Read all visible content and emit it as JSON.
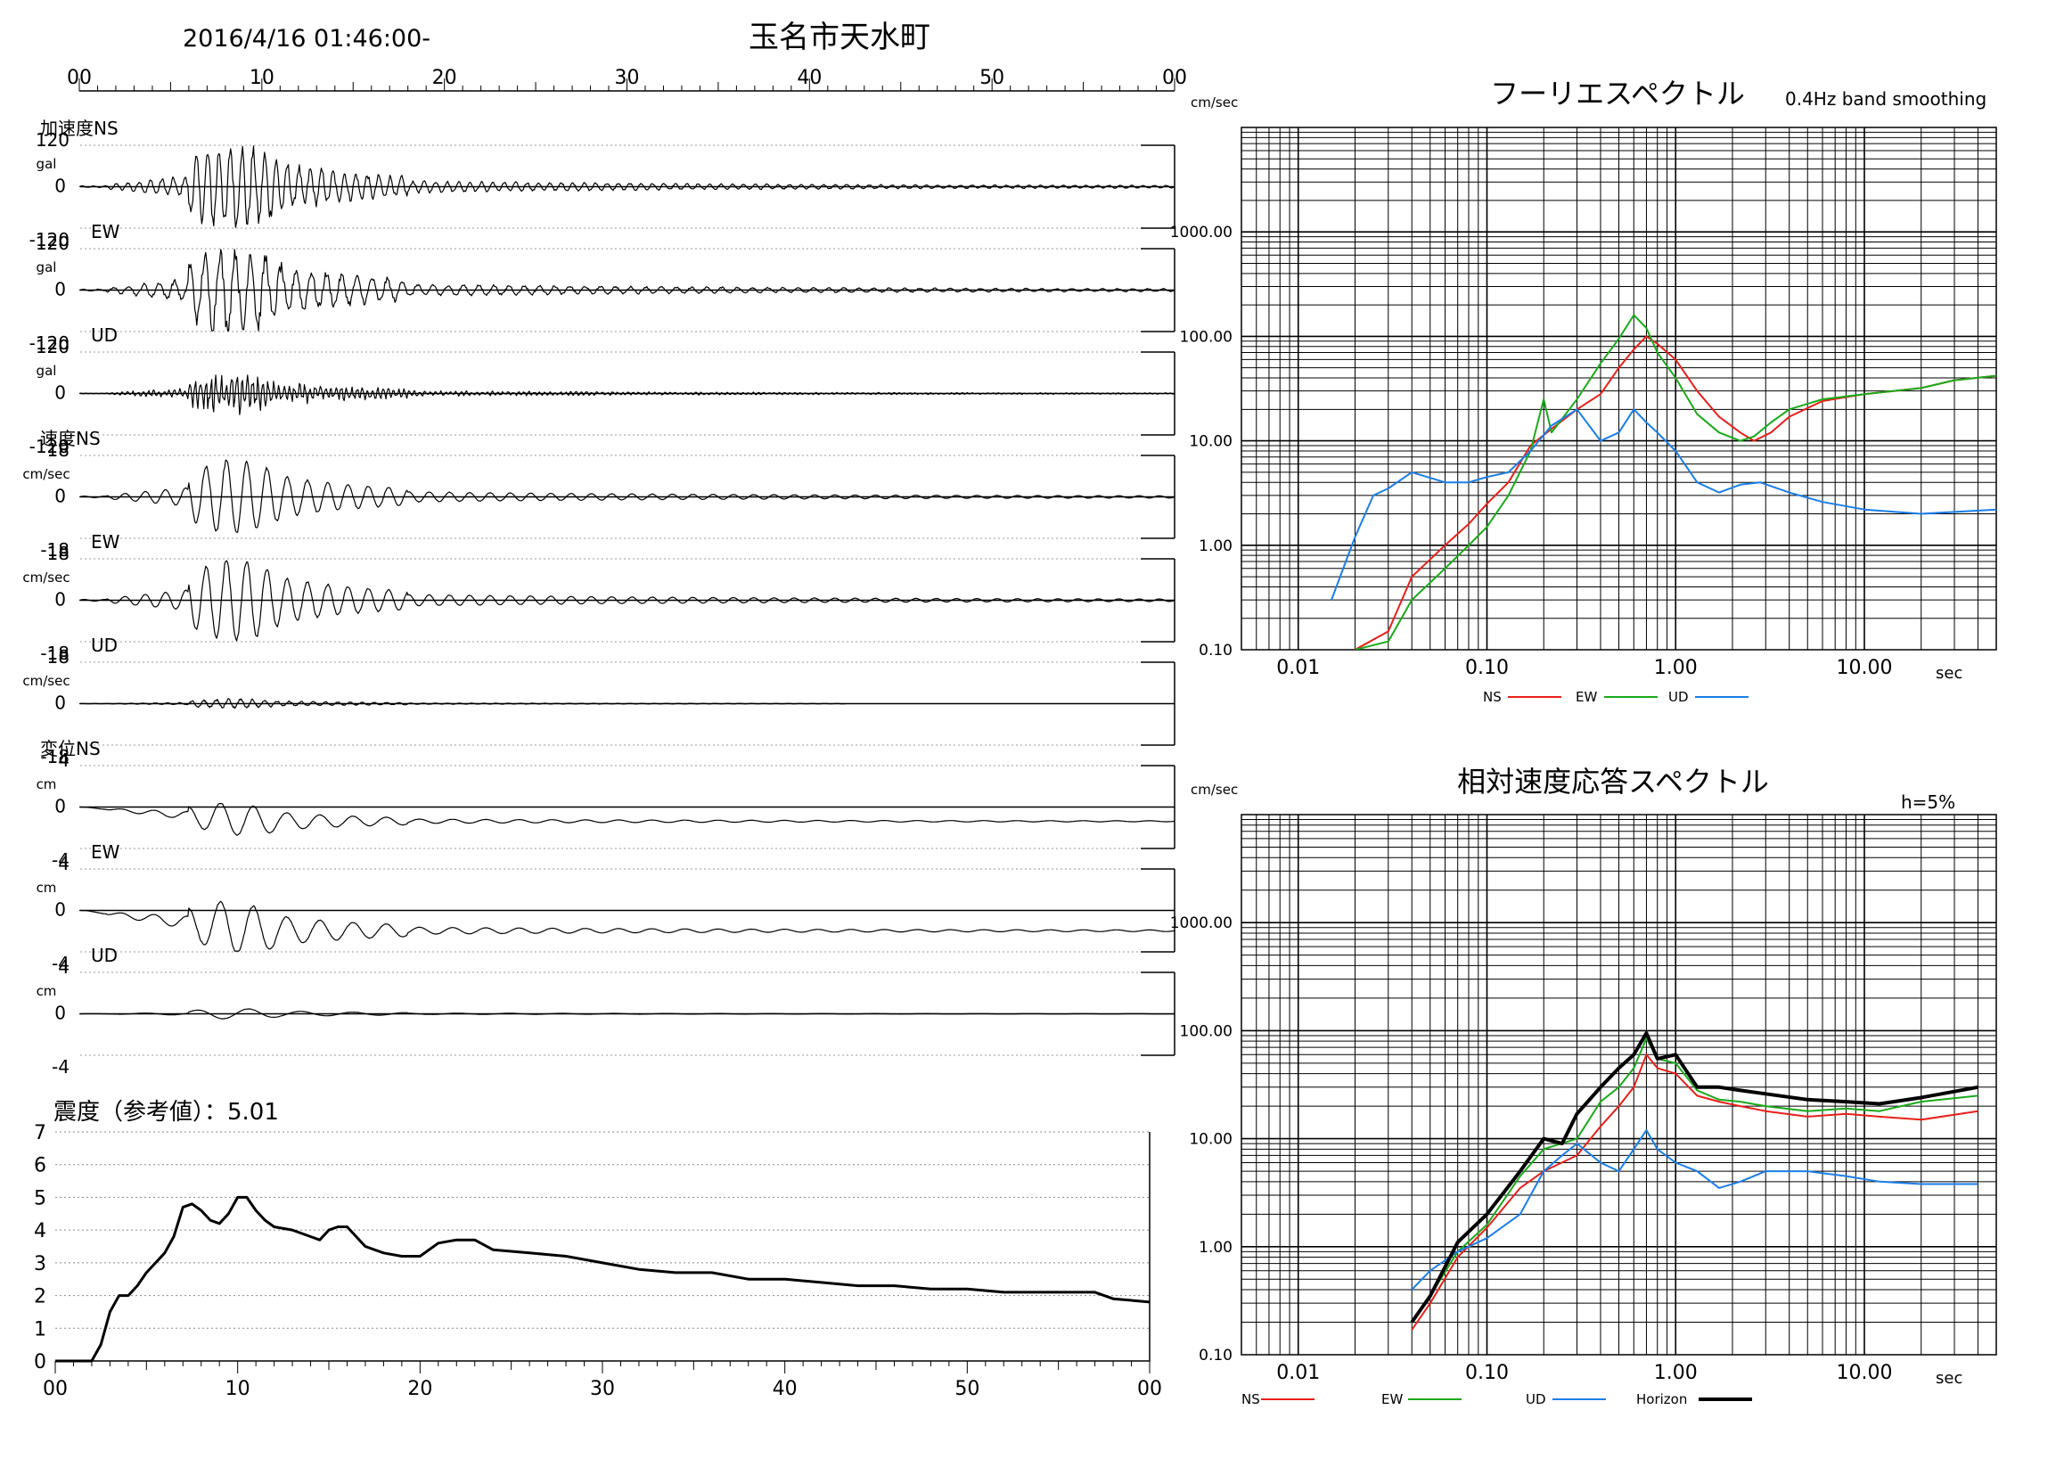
{
  "header": {
    "datetime": "2016/4/16 01:46:00-",
    "station": "玉名市天水町",
    "time_ticks": [
      "00",
      "10",
      "20",
      "30",
      "40",
      "50",
      "00"
    ]
  },
  "colors": {
    "ns": "#e8201a",
    "ew": "#1aaa1a",
    "ud": "#1a7ee8",
    "horizon": "#000000",
    "grid": "#000000"
  },
  "waveforms": {
    "groups": [
      {
        "label": "加速度",
        "unit": "gal",
        "max_label": "120",
        "zero_label": "0",
        "min_label": "-120",
        "components": [
          "NS",
          "EW",
          "UD"
        ]
      },
      {
        "label": "速度",
        "unit": "cm/sec",
        "max_label": "18",
        "zero_label": "0",
        "min_label": "-18",
        "components": [
          "NS",
          "EW",
          "UD"
        ]
      },
      {
        "label": "変位",
        "unit": "cm",
        "max_label": "4",
        "zero_label": "0",
        "min_label": "-4",
        "components": [
          "NS",
          "EW",
          "UD"
        ]
      }
    ]
  },
  "intensity": {
    "label": "震度（参考値）：5.01",
    "y_ticks": [
      "0",
      "1",
      "2",
      "3",
      "4",
      "5",
      "6",
      "7"
    ],
    "x_ticks": [
      "00",
      "10",
      "20",
      "30",
      "40",
      "50",
      "00"
    ]
  },
  "chart_data": [
    {
      "type": "line",
      "title": "震度（参考値）：5.01",
      "xlim": [
        0,
        60
      ],
      "ylim": [
        0,
        7
      ],
      "series": [
        {
          "name": "",
          "x": [
            0,
            2,
            2.5,
            3,
            3.5,
            4,
            4.5,
            5,
            5.5,
            6,
            6.5,
            7,
            7.5,
            8,
            8.5,
            9,
            9.5,
            10,
            10.5,
            11,
            11.5,
            12,
            13,
            14,
            14.5,
            15,
            15.5,
            16,
            17,
            18,
            19,
            20,
            21,
            22,
            23,
            24,
            26,
            28,
            30,
            32,
            34,
            36,
            38,
            40,
            42,
            44,
            46,
            48,
            50,
            52,
            55,
            57,
            58,
            60
          ],
          "y": [
            0,
            0,
            0.5,
            1.5,
            2.0,
            2.0,
            2.3,
            2.7,
            3.0,
            3.3,
            3.8,
            4.7,
            4.8,
            4.6,
            4.3,
            4.2,
            4.5,
            5.0,
            5.0,
            4.6,
            4.3,
            4.1,
            4.0,
            3.8,
            3.7,
            4.0,
            4.1,
            4.1,
            3.5,
            3.3,
            3.2,
            3.2,
            3.6,
            3.7,
            3.7,
            3.4,
            3.3,
            3.2,
            3.0,
            2.8,
            2.7,
            2.7,
            2.5,
            2.5,
            2.4,
            2.3,
            2.3,
            2.2,
            2.2,
            2.1,
            2.1,
            2.1,
            1.9,
            1.8
          ]
        }
      ]
    },
    {
      "type": "line",
      "title": "フーリエスペクトル",
      "subtitle": "0.4Hz band smoothing",
      "xlabel": "sec",
      "ylabel": "cm/sec",
      "x_scale": "log",
      "y_scale": "log",
      "xlim": [
        0.005,
        50
      ],
      "ylim": [
        0.1,
        10000
      ],
      "x_tick_labels": [
        "0.01",
        "0.10",
        "1.00",
        "10.00"
      ],
      "y_tick_labels": [
        "0.10",
        "1.00",
        "10.00",
        "100.00",
        "1000.00"
      ],
      "legend": "bottom",
      "series": [
        {
          "name": "NS",
          "x": [
            0.02,
            0.03,
            0.04,
            0.06,
            0.08,
            0.1,
            0.13,
            0.17,
            0.22,
            0.3,
            0.4,
            0.5,
            0.6,
            0.7,
            0.8,
            1.0,
            1.3,
            1.7,
            2.2,
            2.6,
            3.2,
            4,
            6,
            10,
            20,
            30,
            50
          ],
          "y": [
            0.1,
            0.15,
            0.5,
            1.0,
            1.6,
            2.5,
            4,
            9,
            13,
            20,
            28,
            50,
            75,
            100,
            85,
            60,
            30,
            17,
            12,
            10,
            12,
            17,
            24,
            28,
            32,
            38,
            42
          ]
        },
        {
          "name": "EW",
          "x": [
            0.02,
            0.03,
            0.04,
            0.06,
            0.08,
            0.1,
            0.13,
            0.17,
            0.2,
            0.22,
            0.3,
            0.4,
            0.5,
            0.6,
            0.7,
            0.8,
            1.0,
            1.3,
            1.7,
            2.2,
            2.6,
            3.2,
            4,
            6,
            10,
            20,
            30,
            50
          ],
          "y": [
            0.1,
            0.12,
            0.3,
            0.6,
            1.0,
            1.5,
            3,
            8,
            25,
            12,
            25,
            55,
            95,
            160,
            120,
            70,
            40,
            18,
            12,
            10,
            11,
            15,
            20,
            25,
            28,
            32,
            38,
            42
          ]
        },
        {
          "name": "UD",
          "x": [
            0.015,
            0.02,
            0.025,
            0.03,
            0.04,
            0.06,
            0.08,
            0.1,
            0.13,
            0.17,
            0.22,
            0.3,
            0.4,
            0.5,
            0.6,
            0.7,
            0.8,
            1.0,
            1.3,
            1.7,
            2.2,
            2.8,
            4,
            6,
            10,
            20,
            50
          ],
          "y": [
            0.3,
            1.2,
            3.0,
            3.5,
            5.0,
            4.0,
            4.0,
            4.5,
            5,
            8,
            14,
            20,
            10,
            12,
            20,
            15,
            12,
            8,
            4,
            3.2,
            3.8,
            4,
            3.2,
            2.6,
            2.2,
            2.0,
            2.2
          ]
        }
      ]
    },
    {
      "type": "line",
      "title": "相対速度応答スペクトル",
      "subtitle": "h=5%",
      "xlabel": "sec",
      "ylabel": "cm/sec",
      "x_scale": "log",
      "y_scale": "log",
      "xlim": [
        0.005,
        50
      ],
      "ylim": [
        0.1,
        10000
      ],
      "x_tick_labels": [
        "0.01",
        "0.10",
        "1.00",
        "10.00"
      ],
      "y_tick_labels": [
        "0.10",
        "1.00",
        "10.00",
        "100.00",
        "1000.00"
      ],
      "legend": "bottom",
      "series": [
        {
          "name": "NS",
          "x": [
            0.04,
            0.05,
            0.07,
            0.1,
            0.15,
            0.2,
            0.3,
            0.4,
            0.5,
            0.6,
            0.7,
            0.8,
            1.0,
            1.3,
            1.7,
            2.2,
            3,
            5,
            8,
            12,
            20,
            40
          ],
          "y": [
            0.17,
            0.3,
            0.8,
            1.5,
            3.5,
            5,
            7,
            13,
            20,
            30,
            60,
            45,
            40,
            25,
            22,
            20,
            18,
            16,
            17,
            16,
            15,
            18
          ]
        },
        {
          "name": "EW",
          "x": [
            0.04,
            0.05,
            0.07,
            0.1,
            0.15,
            0.2,
            0.3,
            0.4,
            0.5,
            0.6,
            0.7,
            0.8,
            1.0,
            1.3,
            1.7,
            2.2,
            3,
            5,
            8,
            12,
            20,
            40
          ],
          "y": [
            0.2,
            0.35,
            0.9,
            1.6,
            4.5,
            8,
            10,
            22,
            30,
            45,
            85,
            55,
            50,
            28,
            23,
            22,
            20,
            18,
            19,
            18,
            22,
            25
          ]
        },
        {
          "name": "UD",
          "x": [
            0.04,
            0.05,
            0.07,
            0.1,
            0.15,
            0.2,
            0.25,
            0.3,
            0.4,
            0.5,
            0.6,
            0.7,
            0.8,
            1.0,
            1.3,
            1.7,
            2.2,
            3,
            5,
            8,
            12,
            20,
            40
          ],
          "y": [
            0.4,
            0.6,
            0.9,
            1.2,
            2.0,
            5,
            7,
            9,
            6,
            5,
            8,
            12,
            8,
            6,
            5,
            3.5,
            4,
            5,
            5,
            4.5,
            4,
            3.8,
            3.8
          ]
        },
        {
          "name": "Horizon",
          "x": [
            0.04,
            0.05,
            0.07,
            0.1,
            0.15,
            0.2,
            0.25,
            0.3,
            0.4,
            0.5,
            0.6,
            0.7,
            0.8,
            1.0,
            1.3,
            1.7,
            2.2,
            3,
            5,
            8,
            12,
            20,
            40
          ],
          "y": [
            0.2,
            0.35,
            1.1,
            2.0,
            5.0,
            10,
            9,
            17,
            30,
            45,
            60,
            95,
            55,
            60,
            30,
            30,
            28,
            26,
            23,
            22,
            21,
            24,
            30
          ]
        }
      ]
    }
  ]
}
